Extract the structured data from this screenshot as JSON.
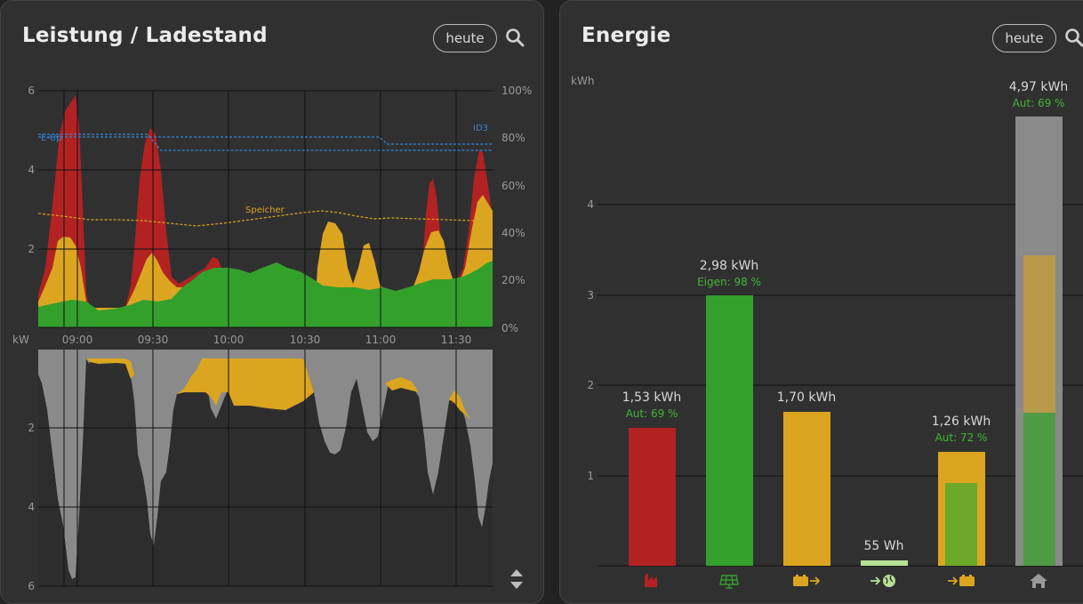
{
  "power_card": {
    "title": "Leistung / Ladestand",
    "date_button": "heute",
    "search_icon": "search-icon",
    "sort_icon": "sort-icon",
    "top_chart": {
      "y_ticks_left": [
        "6",
        "4",
        "2"
      ],
      "y_ticks_right": [
        "100%",
        "80%",
        "60%",
        "40%",
        "20%",
        "0%"
      ],
      "x_ticks": [
        "09:00",
        "09:30",
        "10:00",
        "10:30",
        "11:00",
        "11:30"
      ],
      "unit": "kW",
      "line_labels": {
        "eup": "E-Up",
        "id3": "ID3",
        "storage": "Speicher"
      }
    },
    "bottom_chart": {
      "y_ticks": [
        "2",
        "4",
        "6"
      ]
    }
  },
  "energy_card": {
    "title": "Energie",
    "date_button": "heute",
    "search_icon": "search-icon",
    "unit": "kWh",
    "y_ticks": [
      "4",
      "3",
      "2",
      "1"
    ],
    "bars": [
      {
        "value": "1,53 kWh",
        "sub": "Aut: 69 %",
        "icon": "factory-icon",
        "color": "#b22222"
      },
      {
        "value": "2,98 kWh",
        "sub": "Eigen: 98 %",
        "icon": "solar-panel-icon",
        "color": "#33a02c"
      },
      {
        "value": "1,70 kWh",
        "sub": "",
        "icon": "battery-discharge-icon",
        "color": "#dba520"
      },
      {
        "value": "55 Wh",
        "sub": "",
        "icon": "grid-export-icon",
        "color": "#b6e296"
      },
      {
        "value": "1,26 kWh",
        "sub": "Aut: 72 %",
        "icon": "battery-charge-icon",
        "color": "#dba520"
      },
      {
        "value": "4,97 kWh",
        "sub": "Aut: 69 %",
        "icon": "home-icon",
        "color": "#888888"
      }
    ]
  },
  "colors": {
    "grid": "#b22222",
    "solar": "#33a02c",
    "battery": "#dba520",
    "house": "#8a8a8a",
    "ev_line": "#2f86d6",
    "storage_line": "#dba520",
    "sub_text": "#41b633"
  }
}
